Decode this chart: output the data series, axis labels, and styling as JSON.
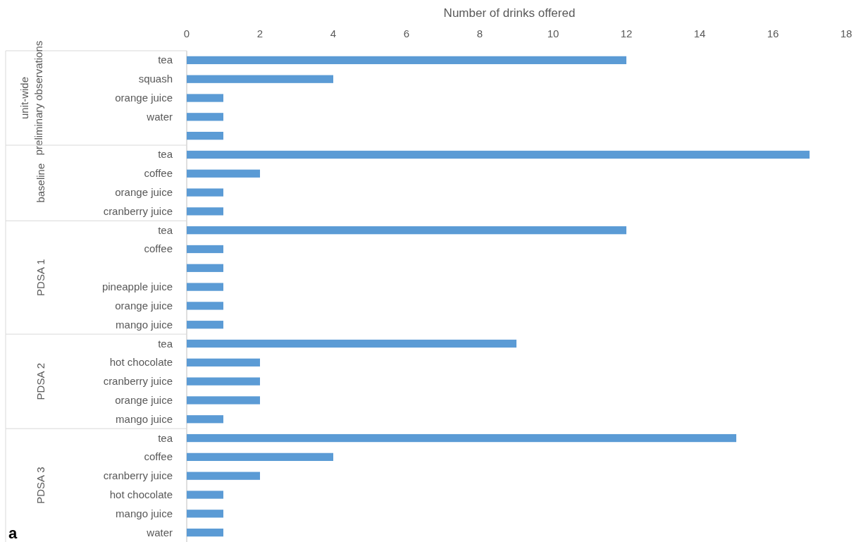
{
  "chart_data": {
    "type": "bar",
    "orientation": "horizontal",
    "xlabel": "Number of drinks offered",
    "categories": [
      "tea",
      "squash",
      "orange juice",
      "water",
      null,
      "tea",
      "coffee",
      "orange juice",
      "cranberry juice",
      "tea",
      "coffee",
      null,
      "pineapple juice",
      "orange juice",
      "mango juice",
      "tea",
      "hot chocolate",
      "cranberry juice",
      "orange juice",
      "mango juice",
      "tea",
      "coffee",
      "cranberry juice",
      "hot chocolate",
      "mango juice",
      "water"
    ],
    "values": [
      12,
      4,
      1,
      1,
      1,
      17,
      2,
      1,
      1,
      12,
      1,
      1,
      1,
      1,
      1,
      9,
      2,
      2,
      2,
      1,
      15,
      4,
      2,
      1,
      1,
      1
    ],
    "color": "#5b9bd5",
    "xlim": [
      0,
      18
    ],
    "xticks": [
      0,
      2,
      4,
      6,
      8,
      10,
      12,
      14,
      16,
      18
    ],
    "grid": false,
    "annotations": [
      "unit-wide preliminary observations",
      "baseline",
      "PDSA 1",
      "PDSA 2",
      "PDSA 3",
      "a"
    ]
  }
}
